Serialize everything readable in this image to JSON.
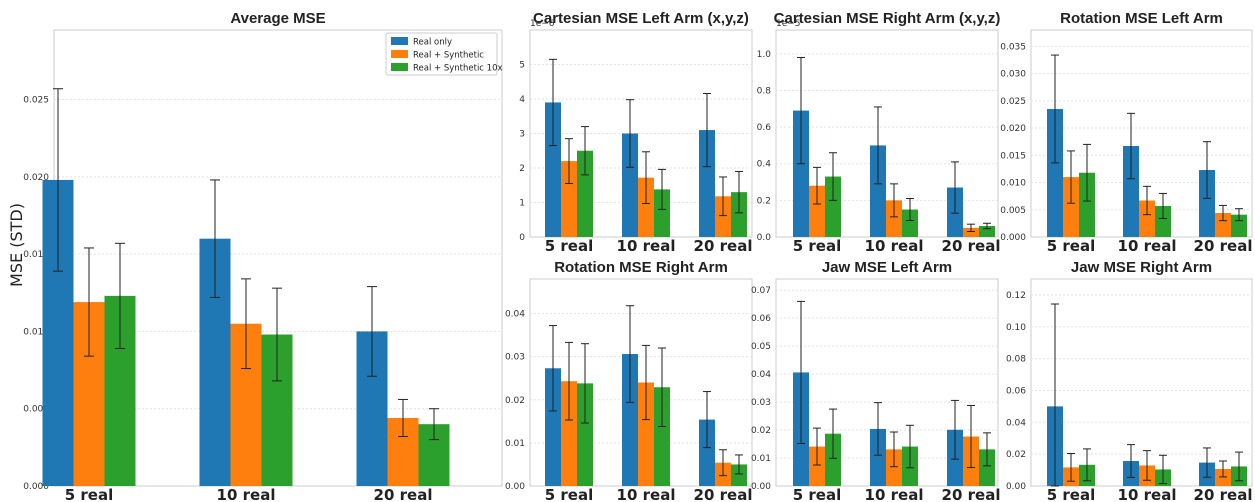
{
  "figure": {
    "ylabel": "MSE (STD)"
  },
  "colors": {
    "real_only": "#1f77b4",
    "real_synthetic": "#ff7f0e",
    "real_synthetic_10x": "#2ca02c"
  },
  "legend": [
    "Real only",
    "Real + Synthetic",
    "Real + Synthetic 10x"
  ],
  "chart_data": [
    {
      "type": "bar",
      "title": "Average MSE",
      "ylabel": "MSE (STD)",
      "categories": [
        "5 real",
        "10 real",
        "20 real"
      ],
      "ylim": [
        0,
        0.0295
      ],
      "yticks": [
        0,
        0.005,
        0.01,
        0.015,
        0.02,
        0.025
      ],
      "tick_labels": [
        "0.000",
        "0.005",
        "0.010",
        "0.015",
        "0.020",
        "0.025"
      ],
      "offset_label": "",
      "legend_position": "top-right",
      "grid": true,
      "series": [
        {
          "name": "Real only",
          "values": [
            0.0198,
            0.016,
            0.01
          ],
          "errors": [
            0.0059,
            0.0038,
            0.0029
          ]
        },
        {
          "name": "Real + Synthetic",
          "values": [
            0.0119,
            0.0105,
            0.0044
          ],
          "errors": [
            0.0035,
            0.0029,
            0.0012
          ]
        },
        {
          "name": "Real + Synthetic 10x",
          "values": [
            0.0123,
            0.0098,
            0.004
          ],
          "errors": [
            0.0034,
            0.003,
            0.001
          ]
        }
      ]
    },
    {
      "type": "bar",
      "title": "Cartesian MSE Left Arm (x,y,z)",
      "categories": [
        "5 real",
        "10 real",
        "20 real"
      ],
      "ylim": [
        0,
        6.0
      ],
      "yticks": [
        0,
        1,
        2,
        3,
        4,
        5
      ],
      "tick_labels": [
        "0",
        "1",
        "2",
        "3",
        "4",
        "5"
      ],
      "offset_label": "1e−6",
      "grid": true,
      "series": [
        {
          "name": "Real only",
          "values": [
            3.9,
            3.0,
            3.1
          ],
          "errors": [
            1.25,
            0.98,
            1.06
          ]
        },
        {
          "name": "Real + Synthetic",
          "values": [
            2.2,
            1.72,
            1.18
          ],
          "errors": [
            0.65,
            0.75,
            0.56
          ]
        },
        {
          "name": "Real + Synthetic 10x",
          "values": [
            2.5,
            1.38,
            1.3
          ],
          "errors": [
            0.7,
            0.58,
            0.6
          ]
        }
      ]
    },
    {
      "type": "bar",
      "title": "Cartesian MSE Right Arm (x,y,z)",
      "categories": [
        "5 real",
        "10 real",
        "20 real"
      ],
      "ylim": [
        0,
        1.13
      ],
      "yticks": [
        0,
        0.2,
        0.4,
        0.6,
        0.8,
        1.0
      ],
      "tick_labels": [
        "0.0",
        "0.2",
        "0.4",
        "0.6",
        "0.8",
        "1.0"
      ],
      "offset_label": "1e−5",
      "grid": true,
      "series": [
        {
          "name": "Real only",
          "values": [
            0.69,
            0.5,
            0.27
          ],
          "errors": [
            0.29,
            0.21,
            0.14
          ]
        },
        {
          "name": "Real + Synthetic",
          "values": [
            0.28,
            0.2,
            0.05
          ],
          "errors": [
            0.1,
            0.09,
            0.02
          ]
        },
        {
          "name": "Real + Synthetic 10x",
          "values": [
            0.33,
            0.15,
            0.06
          ],
          "errors": [
            0.13,
            0.06,
            0.015
          ]
        }
      ]
    },
    {
      "type": "bar",
      "title": "Rotation MSE Left Arm",
      "categories": [
        "5 real",
        "10 real",
        "20 real"
      ],
      "ylim": [
        0,
        0.038
      ],
      "yticks": [
        0,
        0.005,
        0.01,
        0.015,
        0.02,
        0.025,
        0.03,
        0.035
      ],
      "tick_labels": [
        "0.000",
        "0.005",
        "0.010",
        "0.015",
        "0.020",
        "0.025",
        "0.030",
        "0.035"
      ],
      "offset_label": "",
      "grid": true,
      "series": [
        {
          "name": "Real only",
          "values": [
            0.0235,
            0.0167,
            0.0123
          ],
          "errors": [
            0.0099,
            0.006,
            0.0052
          ]
        },
        {
          "name": "Real + Synthetic",
          "values": [
            0.011,
            0.0067,
            0.0044
          ],
          "errors": [
            0.0048,
            0.0026,
            0.0014
          ]
        },
        {
          "name": "Real + Synthetic 10x",
          "values": [
            0.0118,
            0.0057,
            0.0041
          ],
          "errors": [
            0.0052,
            0.0023,
            0.0011
          ]
        }
      ]
    },
    {
      "type": "bar",
      "title": "Rotation MSE Right Arm",
      "categories": [
        "5 real",
        "10 real",
        "20 real"
      ],
      "ylim": [
        0,
        0.048
      ],
      "yticks": [
        0,
        0.01,
        0.02,
        0.03,
        0.04
      ],
      "tick_labels": [
        "0.00",
        "0.01",
        "0.02",
        "0.03",
        "0.04"
      ],
      "offset_label": "",
      "grid": true,
      "series": [
        {
          "name": "Real only",
          "values": [
            0.0273,
            0.0306,
            0.0154
          ],
          "errors": [
            0.0099,
            0.0112,
            0.0065
          ]
        },
        {
          "name": "Real + Synthetic",
          "values": [
            0.0243,
            0.024,
            0.0054
          ],
          "errors": [
            0.009,
            0.0086,
            0.003
          ]
        },
        {
          "name": "Real + Synthetic 10x",
          "values": [
            0.0238,
            0.0229,
            0.005
          ],
          "errors": [
            0.0092,
            0.0091,
            0.0022
          ]
        }
      ]
    },
    {
      "type": "bar",
      "title": "Jaw MSE Left Arm",
      "categories": [
        "5 real",
        "10 real",
        "20 real"
      ],
      "ylim": [
        0,
        0.074
      ],
      "yticks": [
        0,
        0.01,
        0.02,
        0.03,
        0.04,
        0.05,
        0.06,
        0.07
      ],
      "tick_labels": [
        "0.00",
        "0.01",
        "0.02",
        "0.03",
        "0.04",
        "0.05",
        "0.06",
        "0.07"
      ],
      "offset_label": "",
      "grid": true,
      "series": [
        {
          "name": "Real only",
          "values": [
            0.0406,
            0.0204,
            0.0201
          ],
          "errors": [
            0.0254,
            0.0094,
            0.0105
          ]
        },
        {
          "name": "Real + Synthetic",
          "values": [
            0.0141,
            0.0131,
            0.0177
          ],
          "errors": [
            0.0066,
            0.0062,
            0.0111
          ]
        },
        {
          "name": "Real + Synthetic 10x",
          "values": [
            0.0187,
            0.0141,
            0.0131
          ],
          "errors": [
            0.0088,
            0.0076,
            0.0059
          ]
        }
      ]
    },
    {
      "type": "bar",
      "title": "Jaw MSE Right Arm",
      "categories": [
        "5 real",
        "10 real",
        "20 real"
      ],
      "ylim": [
        0,
        0.13
      ],
      "yticks": [
        0,
        0.02,
        0.04,
        0.06,
        0.08,
        0.1,
        0.12
      ],
      "tick_labels": [
        "0.00",
        "0.02",
        "0.04",
        "0.06",
        "0.08",
        "0.10",
        "0.12"
      ],
      "offset_label": "",
      "grid": true,
      "series": [
        {
          "name": "Real only",
          "values": [
            0.05,
            0.0157,
            0.0147
          ],
          "errors": [
            0.0643,
            0.0103,
            0.0092
          ]
        },
        {
          "name": "Real + Synthetic",
          "values": [
            0.0117,
            0.0129,
            0.0107
          ],
          "errors": [
            0.0087,
            0.0093,
            0.005
          ]
        },
        {
          "name": "Real + Synthetic 10x",
          "values": [
            0.0133,
            0.0104,
            0.0123
          ],
          "errors": [
            0.01,
            0.0089,
            0.009
          ]
        }
      ]
    }
  ]
}
